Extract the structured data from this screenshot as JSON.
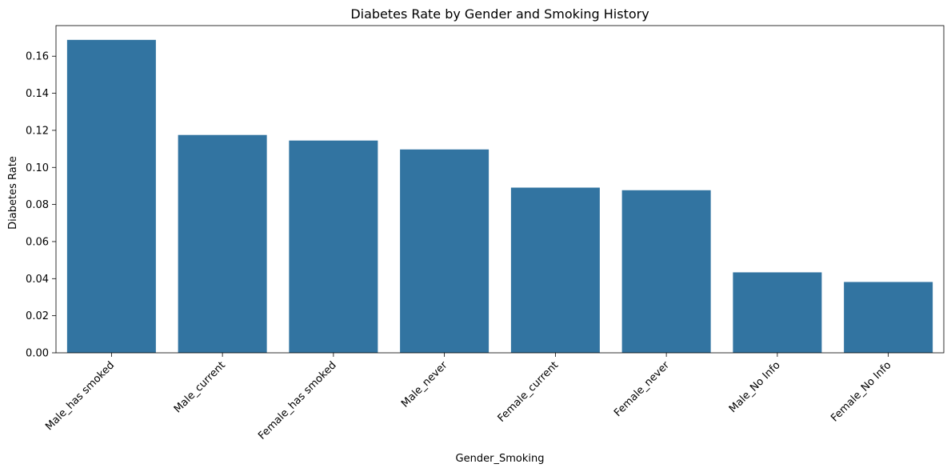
{
  "chart_data": {
    "type": "bar",
    "title": "Diabetes Rate by Gender and Smoking History",
    "xlabel": "Gender_Smoking",
    "ylabel": "Diabetes Rate",
    "categories": [
      "Male_has smoked",
      "Male_current",
      "Female_has smoked",
      "Male_never",
      "Female_current",
      "Female_never",
      "Male_No Info",
      "Female_No Info"
    ],
    "values": [
      0.1688,
      0.1175,
      0.1145,
      0.1097,
      0.0891,
      0.0877,
      0.0434,
      0.0382
    ],
    "ylim": [
      0,
      0.1765
    ],
    "yticks": [
      "0.00",
      "0.02",
      "0.04",
      "0.06",
      "0.08",
      "0.10",
      "0.12",
      "0.14",
      "0.16"
    ],
    "ytick_values": [
      0,
      0.02,
      0.04,
      0.06,
      0.08,
      0.1,
      0.12,
      0.14,
      0.16
    ],
    "grid": false,
    "legend": "none",
    "bar_color": "#3274a1"
  }
}
